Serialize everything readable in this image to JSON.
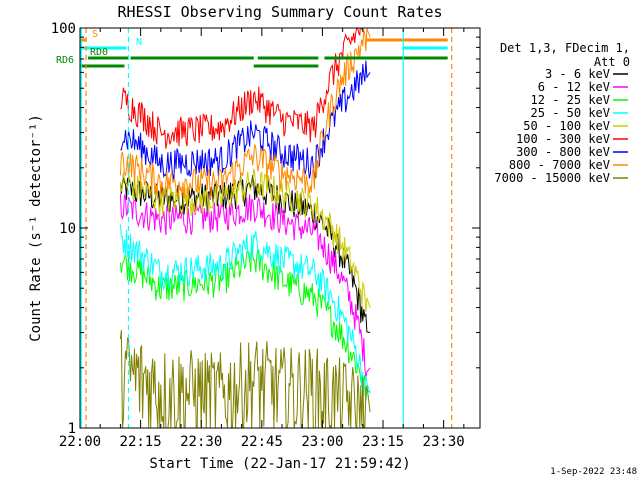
{
  "chart_data": {
    "type": "line",
    "title": "RHESSI Observing Summary Count Rates",
    "xlabel": "Start Time (22-Jan-17 21:59:42)",
    "ylabel": "Count Rate (s⁻¹ detector⁻¹)",
    "y_scale": "log",
    "ylim": [
      1,
      100
    ],
    "xlim_minutes_after_2200": [
      0,
      99
    ],
    "x_tick_labels": [
      "22:00",
      "22:15",
      "22:30",
      "22:45",
      "23:00",
      "23:15",
      "23:30"
    ],
    "y_tick_labels": [
      "1",
      "10",
      "100"
    ],
    "legend_title": [
      "Det 1,3, FDecim 1,",
      "Att 0"
    ],
    "legend_position": "top-right",
    "footer_date": "1-Sep-2022 23:48",
    "series": [
      {
        "name": "3 - 6 keV",
        "color": "#000000",
        "levels": [
          16,
          14,
          14.5,
          16,
          14,
          12,
          3
        ]
      },
      {
        "name": "6 - 12 keV",
        "color": "#ff00ff",
        "levels": [
          13,
          11,
          11.5,
          13,
          11,
          9.5,
          2
        ]
      },
      {
        "name": "12 - 25 keV",
        "color": "#00ff00",
        "levels": [
          7,
          5,
          5.5,
          7,
          5.5,
          4.5,
          1.5
        ]
      },
      {
        "name": "25 - 50 keV",
        "color": "#00ffff",
        "levels": [
          9,
          6,
          6.5,
          8.5,
          7,
          6,
          1.5
        ]
      },
      {
        "name": "50 - 100 keV",
        "color": "#cccc00",
        "levels": [
          17,
          14,
          14,
          17,
          15,
          13,
          4
        ]
      },
      {
        "name": "100 - 300 keV",
        "color": "#ff0000",
        "levels": [
          45,
          30,
          32,
          45,
          35,
          32,
          110
        ]
      },
      {
        "name": "300 - 800 keV",
        "color": "#0000ff",
        "levels": [
          30,
          21,
          22,
          30,
          24,
          21,
          60
        ]
      },
      {
        "name": "800 - 7000 keV",
        "color": "#ff8800",
        "levels": [
          22,
          17,
          17,
          23,
          19,
          17,
          90
        ]
      },
      {
        "name": "7000 - 15000 keV",
        "color": "#808000",
        "levels": [
          2,
          1.6,
          1.5,
          1.8,
          1.6,
          1.6,
          1.2
        ]
      }
    ],
    "flag_lines": [
      {
        "label": "S",
        "color": "#ff8800",
        "segments": [
          [
            0,
            1.5
          ],
          [
            71,
            91
          ]
        ]
      },
      {
        "label": "N",
        "color": "#00ffff",
        "segments": [
          [
            0,
            11.5
          ],
          [
            80,
            91
          ]
        ]
      },
      {
        "label": "RD0",
        "color": "#008800",
        "segments": [
          [
            2,
            12
          ],
          [
            12.5,
            43
          ],
          [
            44,
            59
          ],
          [
            60.5,
            91
          ]
        ]
      },
      {
        "label": "RD6",
        "color": "#008800",
        "segments": [
          [
            0,
            11
          ],
          [
            43,
            59
          ]
        ]
      }
    ],
    "vertical_markers": [
      {
        "t": 1.5,
        "color": "#ff8800",
        "style": "dashed"
      },
      {
        "t": 0.3,
        "color": "#00ffff",
        "style": "solid"
      },
      {
        "t": 12,
        "color": "#00ffff",
        "style": "dashed"
      },
      {
        "t": 80,
        "color": "#00ffff",
        "style": "solid"
      },
      {
        "t": 92,
        "color": "#ff8800",
        "style": "dashed"
      }
    ]
  }
}
